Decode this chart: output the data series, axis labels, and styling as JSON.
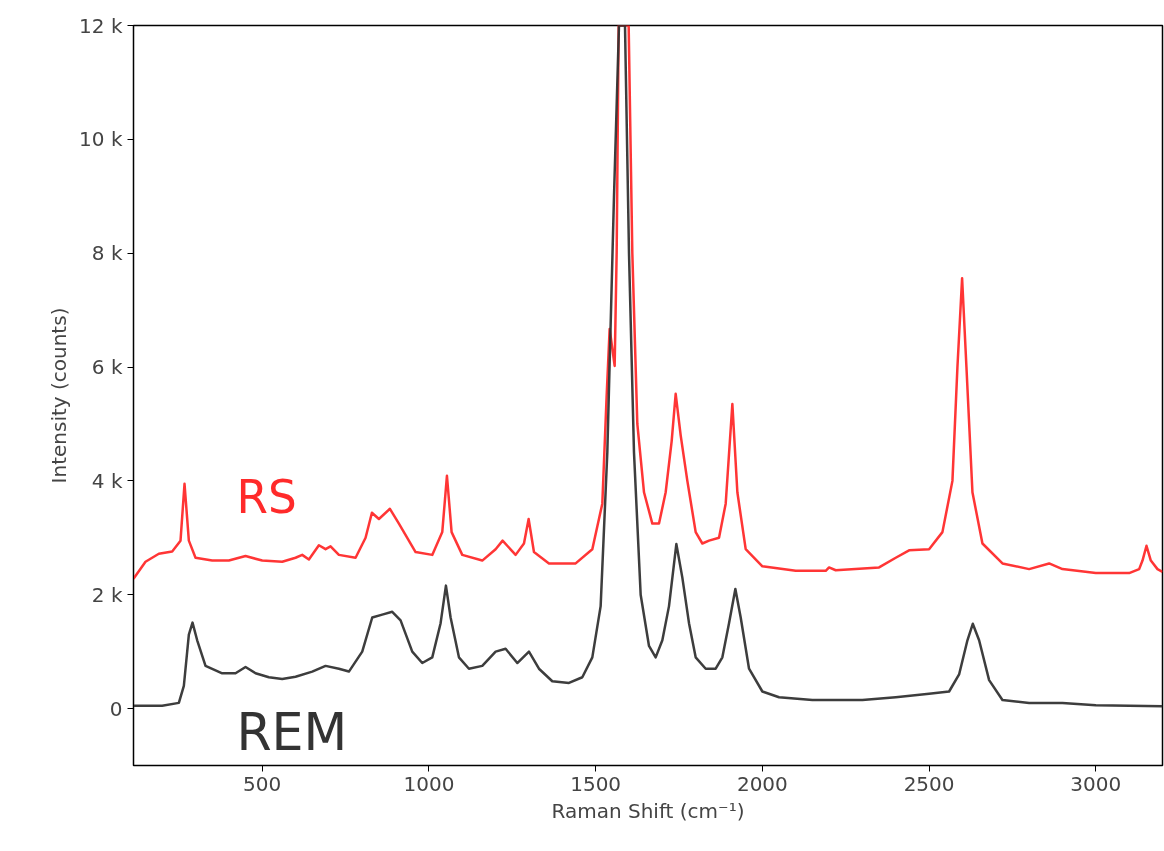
{
  "chart_data": {
    "type": "line",
    "xlabel": "Raman Shift (cm⁻¹)",
    "ylabel": "Intensity (counts)",
    "xlim": [
      114,
      3200
    ],
    "ylim": [
      -1000,
      12000
    ],
    "xticks": [
      500,
      1000,
      1500,
      2000,
      2500,
      3000
    ],
    "yticks": [
      0,
      {
        "value": 2000,
        "label": "2 k"
      },
      {
        "value": 4000,
        "label": "4 k"
      },
      {
        "value": 6000,
        "label": "6 k"
      },
      {
        "value": 8000,
        "label": "8 k"
      },
      {
        "value": 10000,
        "label": "10 k"
      },
      {
        "value": 12000,
        "label": "12 k"
      }
    ],
    "grid": false,
    "series": [
      {
        "name": "RS",
        "color": "#ff2a2a",
        "x": [
          114,
          150,
          190,
          230,
          255,
          267,
          280,
          300,
          350,
          400,
          450,
          500,
          560,
          600,
          620,
          640,
          670,
          690,
          705,
          730,
          780,
          810,
          829,
          850,
          883,
          910,
          960,
          1010,
          1040,
          1054,
          1068,
          1100,
          1160,
          1200,
          1221,
          1260,
          1285,
          1299,
          1315,
          1360,
          1440,
          1490,
          1520,
          1533,
          1542,
          1557,
          1563,
          1569,
          1599,
          1610,
          1625,
          1645,
          1670,
          1690,
          1710,
          1728,
          1740,
          1755,
          1775,
          1800,
          1820,
          1840,
          1870,
          1890,
          1910,
          1925,
          1950,
          2000,
          2100,
          2190,
          2200,
          2220,
          2350,
          2400,
          2440,
          2500,
          2540,
          2570,
          2585,
          2599,
          2612,
          2630,
          2660,
          2720,
          2800,
          2860,
          2900,
          3000,
          3100,
          3130,
          3140,
          3152,
          3165,
          3185,
          3200
        ],
        "values": [
          2280,
          2580,
          2720,
          2760,
          2950,
          3950,
          2950,
          2650,
          2600,
          2600,
          2680,
          2600,
          2580,
          2650,
          2700,
          2620,
          2870,
          2800,
          2850,
          2700,
          2650,
          3000,
          3440,
          3330,
          3510,
          3250,
          2750,
          2700,
          3100,
          4090,
          3100,
          2700,
          2600,
          2800,
          2950,
          2700,
          2900,
          3330,
          2750,
          2550,
          2550,
          2800,
          3600,
          5500,
          6670,
          6020,
          8000,
          12000,
          12000,
          8000,
          5000,
          3800,
          3250,
          3250,
          3800,
          4700,
          5530,
          4800,
          4000,
          3100,
          2900,
          2950,
          3000,
          3600,
          5350,
          3800,
          2800,
          2500,
          2420,
          2420,
          2480,
          2430,
          2480,
          2650,
          2780,
          2800,
          3100,
          4000,
          6000,
          7560,
          6000,
          3800,
          2900,
          2550,
          2450,
          2550,
          2450,
          2380,
          2380,
          2450,
          2600,
          2860,
          2600,
          2450,
          2400
        ]
      },
      {
        "name": "REM",
        "color": "#333333",
        "x": [
          114,
          200,
          250,
          265,
          280,
          291,
          305,
          330,
          380,
          420,
          450,
          480,
          520,
          560,
          600,
          650,
          690,
          730,
          760,
          800,
          830,
          860,
          890,
          915,
          950,
          980,
          1010,
          1035,
          1051,
          1065,
          1090,
          1120,
          1160,
          1200,
          1230,
          1265,
          1300,
          1330,
          1370,
          1420,
          1460,
          1490,
          1515,
          1535,
          1555,
          1570,
          1588,
          1600,
          1615,
          1635,
          1660,
          1680,
          1700,
          1720,
          1742,
          1760,
          1780,
          1800,
          1830,
          1860,
          1880,
          1900,
          1919,
          1935,
          1960,
          2000,
          2050,
          2150,
          2300,
          2400,
          2500,
          2560,
          2590,
          2615,
          2631,
          2650,
          2680,
          2720,
          2800,
          2900,
          3000,
          3100,
          3200
        ],
        "values": [
          50,
          50,
          100,
          400,
          1300,
          1510,
          1200,
          750,
          620,
          620,
          730,
          620,
          550,
          520,
          560,
          650,
          750,
          700,
          650,
          1000,
          1600,
          1650,
          1700,
          1550,
          1000,
          800,
          900,
          1500,
          2160,
          1600,
          900,
          700,
          750,
          1000,
          1050,
          800,
          1000,
          700,
          480,
          450,
          550,
          900,
          1800,
          4500,
          9000,
          12000,
          12000,
          8000,
          4500,
          2000,
          1100,
          900,
          1200,
          1800,
          2890,
          2300,
          1500,
          900,
          700,
          700,
          900,
          1500,
          2100,
          1600,
          700,
          300,
          200,
          150,
          150,
          200,
          260,
          300,
          600,
          1200,
          1490,
          1200,
          500,
          150,
          100,
          100,
          60,
          50,
          40
        ]
      }
    ]
  }
}
